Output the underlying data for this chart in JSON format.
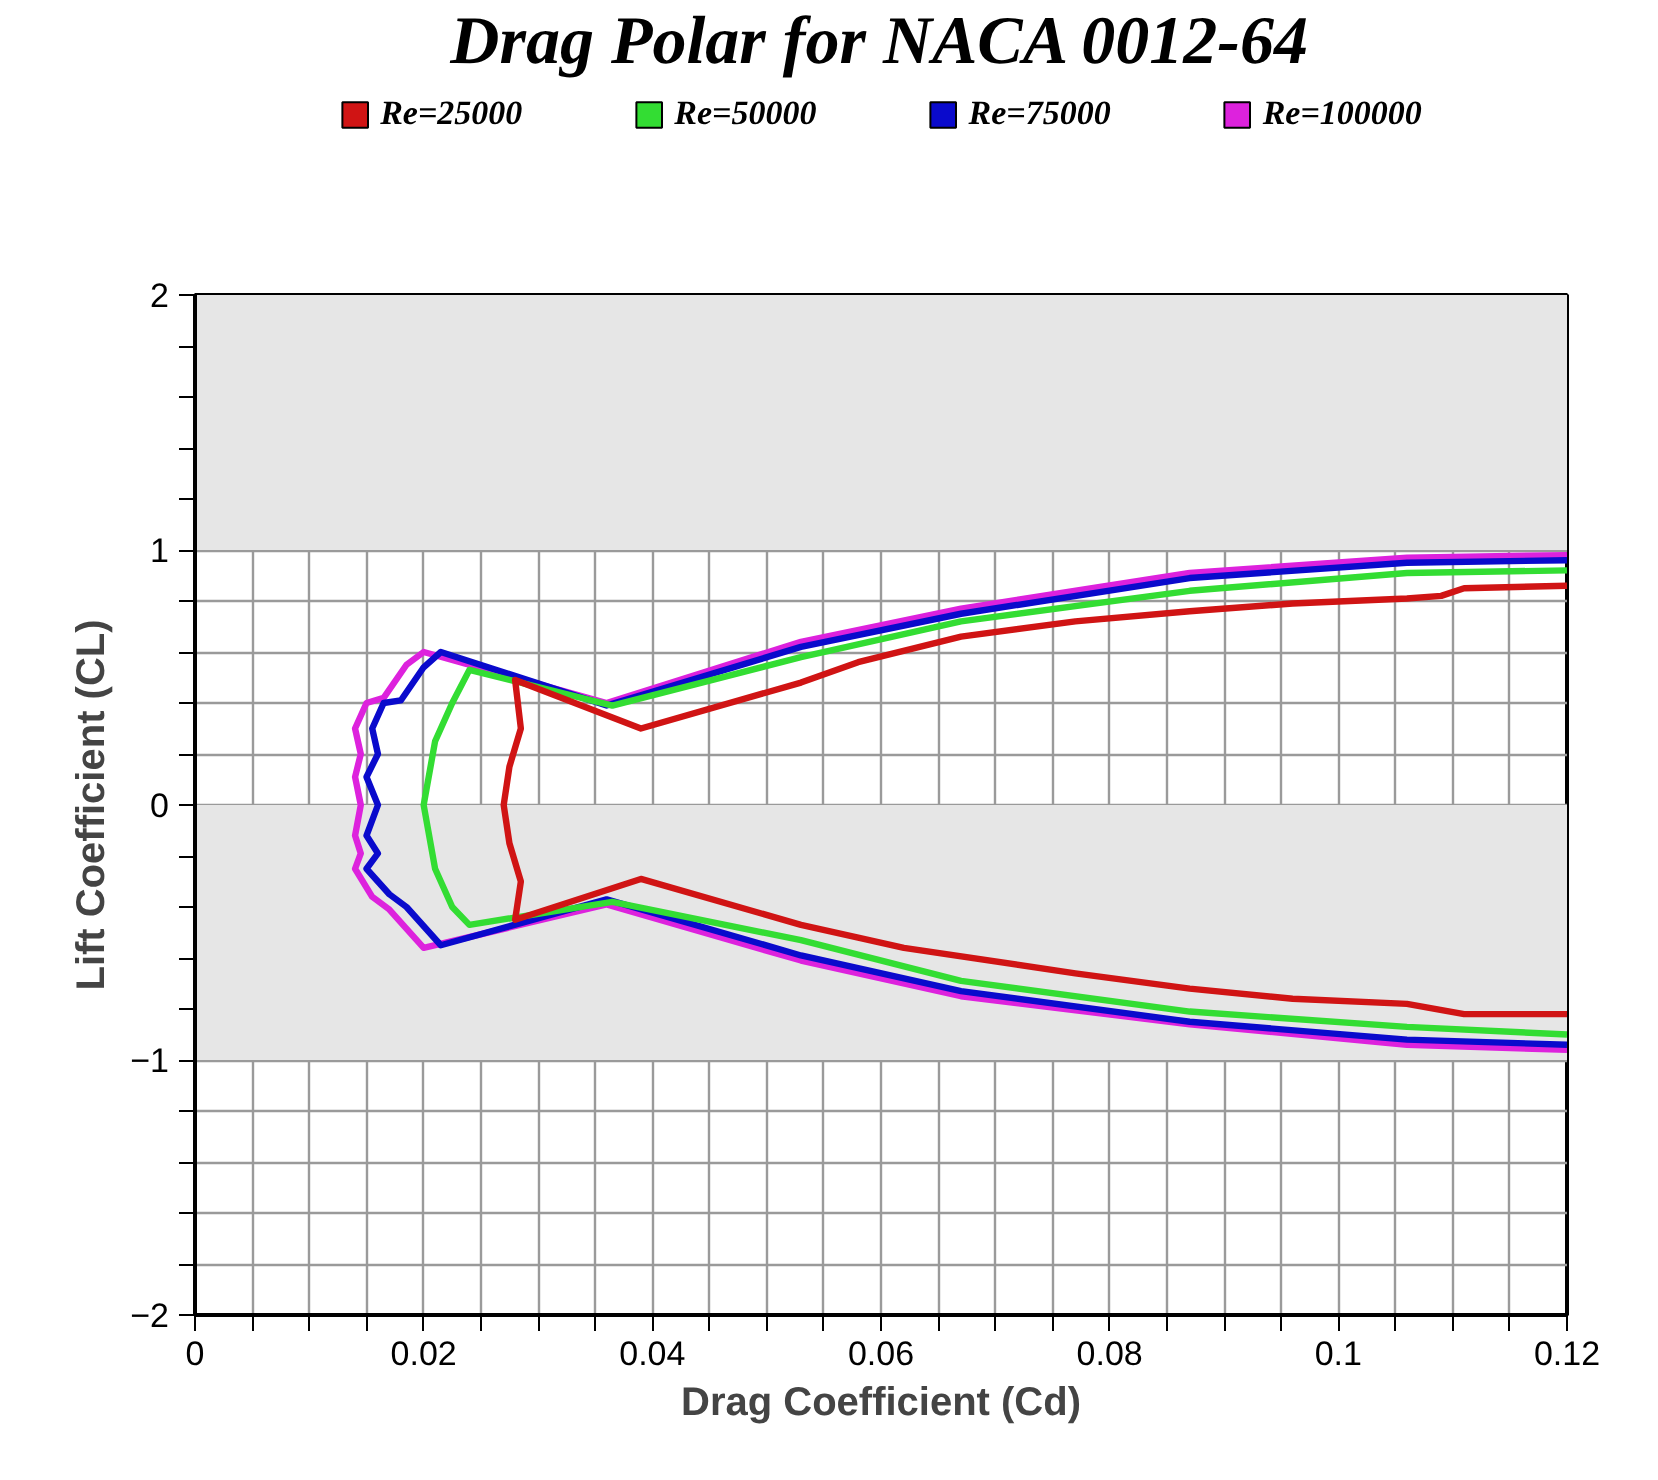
{
  "chart_data": {
    "type": "line",
    "title": "Drag Polar for NACA 0012-64",
    "xlabel": "Drag Coefficient (Cd)",
    "ylabel": "Lift Coefficient (CL)",
    "xlim": [
      0,
      0.12
    ],
    "ylim": [
      -2,
      2
    ],
    "xticks": [
      0,
      {
        "value": 0.005,
        "label": null
      },
      {
        "value": 0.01,
        "label": null
      },
      {
        "value": 0.015,
        "label": null
      },
      0.02,
      {
        "value": 0.025,
        "label": null
      },
      {
        "value": 0.03,
        "label": null
      },
      {
        "value": 0.035,
        "label": null
      },
      0.04,
      {
        "value": 0.045,
        "label": null
      },
      {
        "value": 0.05,
        "label": null
      },
      {
        "value": 0.055,
        "label": null
      },
      0.06,
      {
        "value": 0.065,
        "label": null
      },
      {
        "value": 0.07,
        "label": null
      },
      {
        "value": 0.075,
        "label": null
      },
      0.08,
      {
        "value": 0.085,
        "label": null
      },
      {
        "value": 0.09,
        "label": null
      },
      {
        "value": 0.095,
        "label": null
      },
      0.1,
      {
        "value": 0.105,
        "label": null
      },
      {
        "value": 0.11,
        "label": null
      },
      {
        "value": 0.115,
        "label": null
      },
      0.12
    ],
    "yticks": [
      {
        "value": -2,
        "label": "−2"
      },
      {
        "value": -1.8,
        "label": null
      },
      {
        "value": -1.6,
        "label": null
      },
      {
        "value": -1.4,
        "label": null
      },
      {
        "value": -1.2,
        "label": null
      },
      {
        "value": -1,
        "label": "−1"
      },
      {
        "value": -0.8,
        "label": null
      },
      {
        "value": -0.6,
        "label": null
      },
      {
        "value": -0.4,
        "label": null
      },
      {
        "value": -0.2,
        "label": null
      },
      0,
      {
        "value": 0.2,
        "label": null
      },
      {
        "value": 0.4,
        "label": null
      },
      {
        "value": 0.6,
        "label": null
      },
      {
        "value": 0.8,
        "label": null
      },
      1,
      {
        "value": 1.2,
        "label": null
      },
      {
        "value": 1.4,
        "label": null
      },
      {
        "value": 1.6,
        "label": null
      },
      {
        "value": 1.8,
        "label": null
      },
      2
    ],
    "grid": true,
    "legend": "top",
    "bands": [
      {
        "axis": "y",
        "from": 1,
        "to": 2,
        "color": "#e6e6e6"
      },
      {
        "axis": "y",
        "from": -1,
        "to": 0,
        "color": "#e6e6e6"
      }
    ],
    "series": [
      {
        "name": "Re=25000",
        "color": "#d01414",
        "x": [
          0.12,
          0.111,
          0.106,
          0.096,
          0.087,
          0.077,
          0.062,
          0.058,
          0.053,
          0.039,
          0.028,
          0.0285,
          0.0275,
          0.027,
          0.0275,
          0.0285,
          0.028,
          0.039,
          0.053,
          0.058,
          0.067,
          0.077,
          0.087,
          0.096,
          0.106,
          0.109,
          0.111,
          0.12
        ],
        "values": [
          -0.82,
          -0.82,
          -0.78,
          -0.76,
          -0.72,
          -0.66,
          -0.56,
          -0.52,
          -0.47,
          -0.29,
          -0.45,
          -0.3,
          -0.15,
          0,
          0.15,
          0.3,
          0.49,
          0.3,
          0.48,
          0.56,
          0.66,
          0.72,
          0.76,
          0.79,
          0.81,
          0.82,
          0.85,
          0.86
        ]
      },
      {
        "name": "Re=50000",
        "color": "#33dd33",
        "x": [
          0.12,
          0.106,
          0.087,
          0.067,
          0.053,
          0.0365,
          0.024,
          0.0225,
          0.021,
          0.02,
          0.021,
          0.0225,
          0.024,
          0.0365,
          0.053,
          0.067,
          0.087,
          0.106,
          0.12
        ],
        "values": [
          -0.9,
          -0.87,
          -0.81,
          -0.69,
          -0.53,
          -0.38,
          -0.47,
          -0.4,
          -0.25,
          0,
          0.25,
          0.4,
          0.53,
          0.39,
          0.58,
          0.72,
          0.84,
          0.91,
          0.92
        ]
      },
      {
        "name": "Re=75000",
        "color": "#0a0acc",
        "x": [
          0.12,
          0.106,
          0.087,
          0.067,
          0.053,
          0.036,
          0.0215,
          0.0185,
          0.017,
          0.015,
          0.016,
          0.015,
          0.016,
          0.015,
          0.016,
          0.0155,
          0.0165,
          0.018,
          0.02,
          0.0215,
          0.036,
          0.053,
          0.067,
          0.087,
          0.106,
          0.12
        ],
        "values": [
          -0.94,
          -0.92,
          -0.85,
          -0.73,
          -0.59,
          -0.37,
          -0.55,
          -0.4,
          -0.35,
          -0.25,
          -0.19,
          -0.12,
          0,
          0.11,
          0.2,
          0.3,
          0.4,
          0.41,
          0.54,
          0.6,
          0.39,
          0.62,
          0.75,
          0.89,
          0.95,
          0.96
        ]
      },
      {
        "name": "Re=100000",
        "color": "#dd22dd",
        "x": [
          0.12,
          0.106,
          0.087,
          0.067,
          0.053,
          0.036,
          0.02,
          0.017,
          0.0155,
          0.014,
          0.0145,
          0.014,
          0.0145,
          0.014,
          0.0145,
          0.014,
          0.015,
          0.0165,
          0.0185,
          0.02,
          0.036,
          0.053,
          0.067,
          0.087,
          0.106,
          0.12
        ],
        "values": [
          -0.96,
          -0.94,
          -0.86,
          -0.75,
          -0.61,
          -0.39,
          -0.56,
          -0.41,
          -0.36,
          -0.25,
          -0.19,
          -0.12,
          0,
          0.11,
          0.2,
          0.3,
          0.4,
          0.42,
          0.55,
          0.6,
          0.4,
          0.64,
          0.77,
          0.91,
          0.97,
          0.98
        ]
      }
    ]
  }
}
